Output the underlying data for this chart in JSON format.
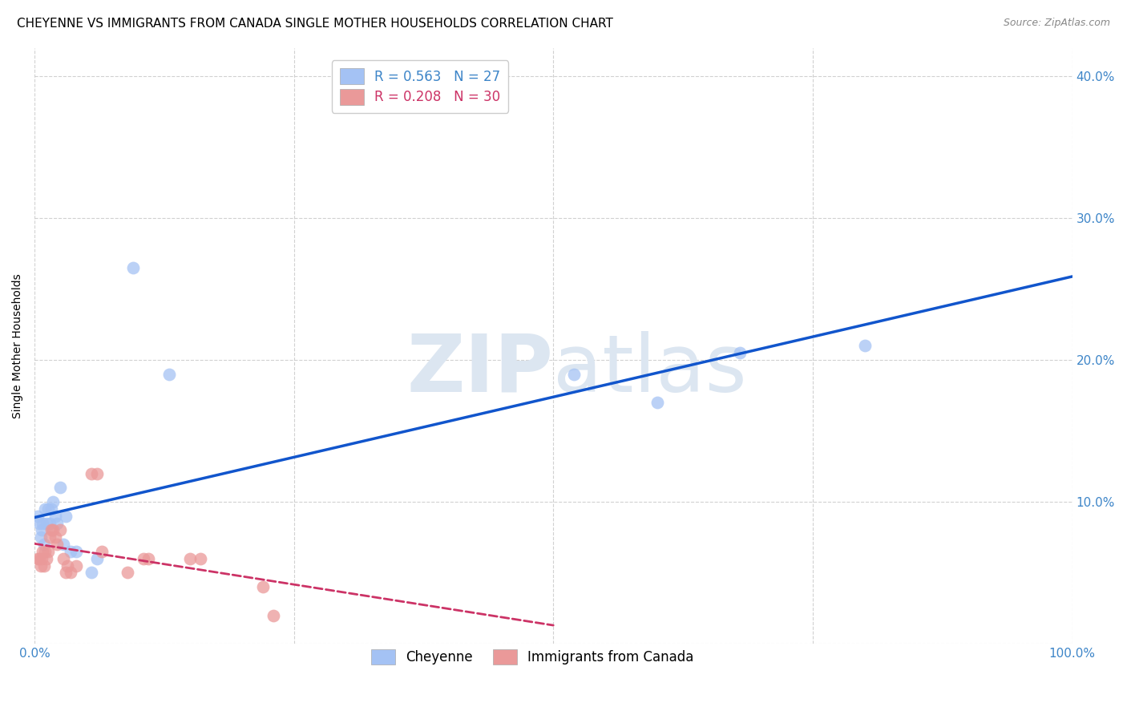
{
  "title": "CHEYENNE VS IMMIGRANTS FROM CANADA SINGLE MOTHER HOUSEHOLDS CORRELATION CHART",
  "source": "Source: ZipAtlas.com",
  "ylabel": "Single Mother Households",
  "xlim": [
    0.0,
    1.0
  ],
  "ylim": [
    0.0,
    0.42
  ],
  "yticks": [
    0.0,
    0.1,
    0.2,
    0.3,
    0.4
  ],
  "xticks": [
    0.0,
    0.25,
    0.5,
    0.75,
    1.0
  ],
  "xtick_labels": [
    "0.0%",
    "",
    "",
    "",
    "100.0%"
  ],
  "ytick_labels": [
    "",
    "10.0%",
    "20.0%",
    "30.0%",
    "40.0%"
  ],
  "blue_R": 0.563,
  "blue_N": 27,
  "pink_R": 0.208,
  "pink_N": 30,
  "cheyenne_x": [
    0.003,
    0.005,
    0.006,
    0.007,
    0.008,
    0.009,
    0.01,
    0.012,
    0.013,
    0.015,
    0.016,
    0.018,
    0.02,
    0.022,
    0.025,
    0.028,
    0.03,
    0.035,
    0.04,
    0.055,
    0.06,
    0.095,
    0.13,
    0.52,
    0.6,
    0.68,
    0.8
  ],
  "cheyenne_y": [
    0.09,
    0.085,
    0.075,
    0.08,
    0.085,
    0.07,
    0.095,
    0.085,
    0.095,
    0.085,
    0.095,
    0.1,
    0.09,
    0.085,
    0.11,
    0.07,
    0.09,
    0.065,
    0.065,
    0.05,
    0.06,
    0.265,
    0.19,
    0.19,
    0.17,
    0.205,
    0.21
  ],
  "canada_x": [
    0.003,
    0.005,
    0.006,
    0.007,
    0.008,
    0.009,
    0.01,
    0.012,
    0.013,
    0.015,
    0.016,
    0.018,
    0.02,
    0.022,
    0.025,
    0.028,
    0.03,
    0.032,
    0.035,
    0.04,
    0.055,
    0.06,
    0.065,
    0.09,
    0.105,
    0.11,
    0.15,
    0.16,
    0.22,
    0.23
  ],
  "canada_y": [
    0.06,
    0.06,
    0.055,
    0.06,
    0.065,
    0.055,
    0.065,
    0.06,
    0.065,
    0.075,
    0.08,
    0.08,
    0.075,
    0.07,
    0.08,
    0.06,
    0.05,
    0.055,
    0.05,
    0.055,
    0.12,
    0.12,
    0.065,
    0.05,
    0.06,
    0.06,
    0.06,
    0.06,
    0.04,
    0.02
  ],
  "blue_color": "#a4c2f4",
  "pink_color": "#ea9999",
  "blue_line_color": "#1155cc",
  "pink_line_color": "#cc3366",
  "background_color": "#ffffff",
  "grid_color": "#cccccc",
  "watermark_color": "#dce6f1",
  "title_fontsize": 11,
  "axis_label_fontsize": 10,
  "tick_fontsize": 11,
  "legend_fontsize": 12
}
